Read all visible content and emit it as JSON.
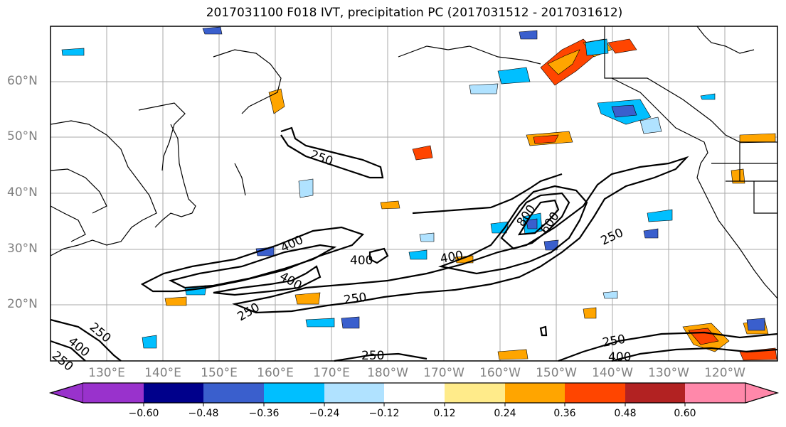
{
  "title": "2017031100 F018 IVT, precipitation PC (2017031512 - 2017031612)",
  "lat_labels": [
    "60°N",
    "50°N",
    "40°N",
    "30°N",
    "20°N"
  ],
  "lon_labels": [
    "130°E",
    "140°E",
    "150°E",
    "160°E",
    "170°E",
    "180°W",
    "170°W",
    "160°W",
    "150°W",
    "140°W",
    "130°W",
    "120°W"
  ],
  "contour_labels": [
    "250",
    "400",
    "400",
    "400",
    "250",
    "400",
    "600",
    "250",
    "800",
    "250",
    "250",
    "400",
    "250",
    "400",
    "250",
    "250"
  ],
  "colorbar": {
    "ticks": [
      "−0.60",
      "−0.48",
      "−0.36",
      "−0.24",
      "−0.12",
      "0.12",
      "0.24",
      "0.36",
      "0.48",
      "0.60"
    ],
    "colors": [
      "#9932cc",
      "#00008b",
      "#3a5fcd",
      "#00bfff",
      "#b0e2ff",
      "#ffffff",
      "#ffeb8a",
      "#ffa500",
      "#ff4500",
      "#b22222",
      "#ff88aa"
    ]
  }
}
